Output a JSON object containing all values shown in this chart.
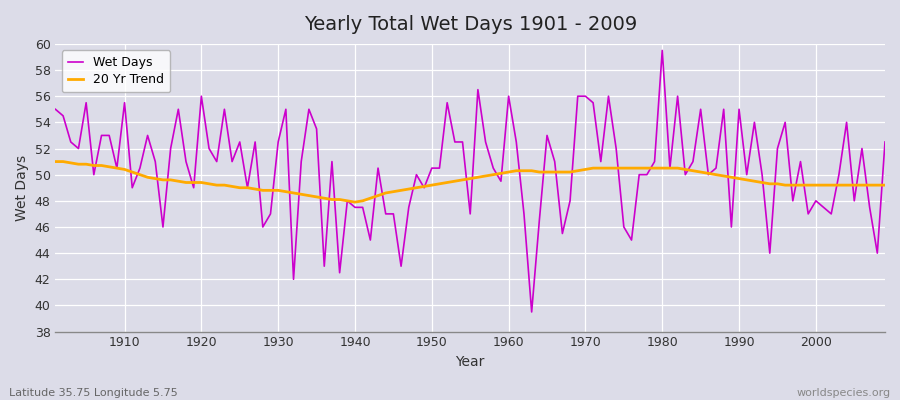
{
  "title": "Yearly Total Wet Days 1901 - 2009",
  "xlabel": "Year",
  "ylabel": "Wet Days",
  "subtitle_left": "Latitude 35.75 Longitude 5.75",
  "subtitle_right": "worldspecies.org",
  "ylim": [
    38,
    60
  ],
  "yticks": [
    38,
    40,
    42,
    44,
    46,
    48,
    50,
    52,
    54,
    56,
    58,
    60
  ],
  "line_color": "#cc00cc",
  "trend_color": "#ffaa00",
  "bg_color": "#dcdce8",
  "plot_bg_color": "#dcdce8",
  "legend_labels": [
    "Wet Days",
    "20 Yr Trend"
  ],
  "years": [
    1901,
    1902,
    1903,
    1904,
    1905,
    1906,
    1907,
    1908,
    1909,
    1910,
    1911,
    1912,
    1913,
    1914,
    1915,
    1916,
    1917,
    1918,
    1919,
    1920,
    1921,
    1922,
    1923,
    1924,
    1925,
    1926,
    1927,
    1928,
    1929,
    1930,
    1931,
    1932,
    1933,
    1934,
    1935,
    1936,
    1937,
    1938,
    1939,
    1940,
    1941,
    1942,
    1943,
    1944,
    1945,
    1946,
    1947,
    1948,
    1949,
    1950,
    1951,
    1952,
    1953,
    1954,
    1955,
    1956,
    1957,
    1958,
    1959,
    1960,
    1961,
    1962,
    1963,
    1964,
    1965,
    1966,
    1967,
    1968,
    1969,
    1970,
    1971,
    1972,
    1973,
    1974,
    1975,
    1976,
    1977,
    1978,
    1979,
    1980,
    1981,
    1982,
    1983,
    1984,
    1985,
    1986,
    1987,
    1988,
    1989,
    1990,
    1991,
    1992,
    1993,
    1994,
    1995,
    1996,
    1997,
    1998,
    1999,
    2000,
    2001,
    2002,
    2003,
    2004,
    2005,
    2006,
    2007,
    2008,
    2009
  ],
  "wet_days": [
    55,
    54.5,
    52.5,
    52,
    55.5,
    50,
    53,
    53,
    50.5,
    55.5,
    49,
    50.5,
    53,
    51,
    46,
    52,
    55,
    51,
    49,
    56,
    52,
    51,
    55,
    51,
    52.5,
    49,
    52.5,
    46,
    47,
    52.5,
    55,
    42,
    51,
    55,
    53.5,
    43,
    51,
    42.5,
    48,
    47.5,
    47.5,
    45,
    50.5,
    47,
    47,
    43,
    47.5,
    50,
    49,
    50.5,
    50.5,
    55.5,
    52.5,
    52.5,
    47,
    56.5,
    52.5,
    50.5,
    49.5,
    56,
    52.5,
    47,
    39.5,
    46.5,
    53,
    51,
    45.5,
    48,
    56,
    56,
    55.5,
    51,
    56,
    52,
    46,
    45,
    50,
    50,
    51,
    59.5,
    50.5,
    56,
    50,
    51,
    55,
    50,
    50.5,
    55,
    46,
    55,
    50,
    54,
    50,
    44,
    52,
    54,
    48,
    51,
    47,
    48,
    47.5,
    47,
    50,
    54,
    48,
    52,
    47.5,
    44,
    52.5
  ],
  "trend": [
    51.0,
    51.0,
    50.9,
    50.8,
    50.8,
    50.7,
    50.7,
    50.6,
    50.5,
    50.4,
    50.2,
    50.0,
    49.8,
    49.7,
    49.6,
    49.6,
    49.5,
    49.4,
    49.4,
    49.4,
    49.3,
    49.2,
    49.2,
    49.1,
    49.0,
    49.0,
    48.9,
    48.8,
    48.8,
    48.8,
    48.7,
    48.6,
    48.5,
    48.4,
    48.3,
    48.2,
    48.1,
    48.1,
    48.0,
    47.9,
    48.0,
    48.2,
    48.4,
    48.6,
    48.7,
    48.8,
    48.9,
    49.0,
    49.1,
    49.2,
    49.3,
    49.4,
    49.5,
    49.6,
    49.7,
    49.8,
    49.9,
    50.0,
    50.1,
    50.2,
    50.3,
    50.3,
    50.3,
    50.2,
    50.2,
    50.2,
    50.2,
    50.2,
    50.3,
    50.4,
    50.5,
    50.5,
    50.5,
    50.5,
    50.5,
    50.5,
    50.5,
    50.5,
    50.5,
    50.5,
    50.5,
    50.5,
    50.4,
    50.3,
    50.2,
    50.1,
    50.0,
    49.9,
    49.8,
    49.7,
    49.6,
    49.5,
    49.4,
    49.3,
    49.3,
    49.2,
    49.2,
    49.2,
    49.2,
    49.2,
    49.2,
    49.2,
    49.2,
    49.2,
    49.2,
    49.2,
    49.2,
    49.2,
    49.2
  ]
}
